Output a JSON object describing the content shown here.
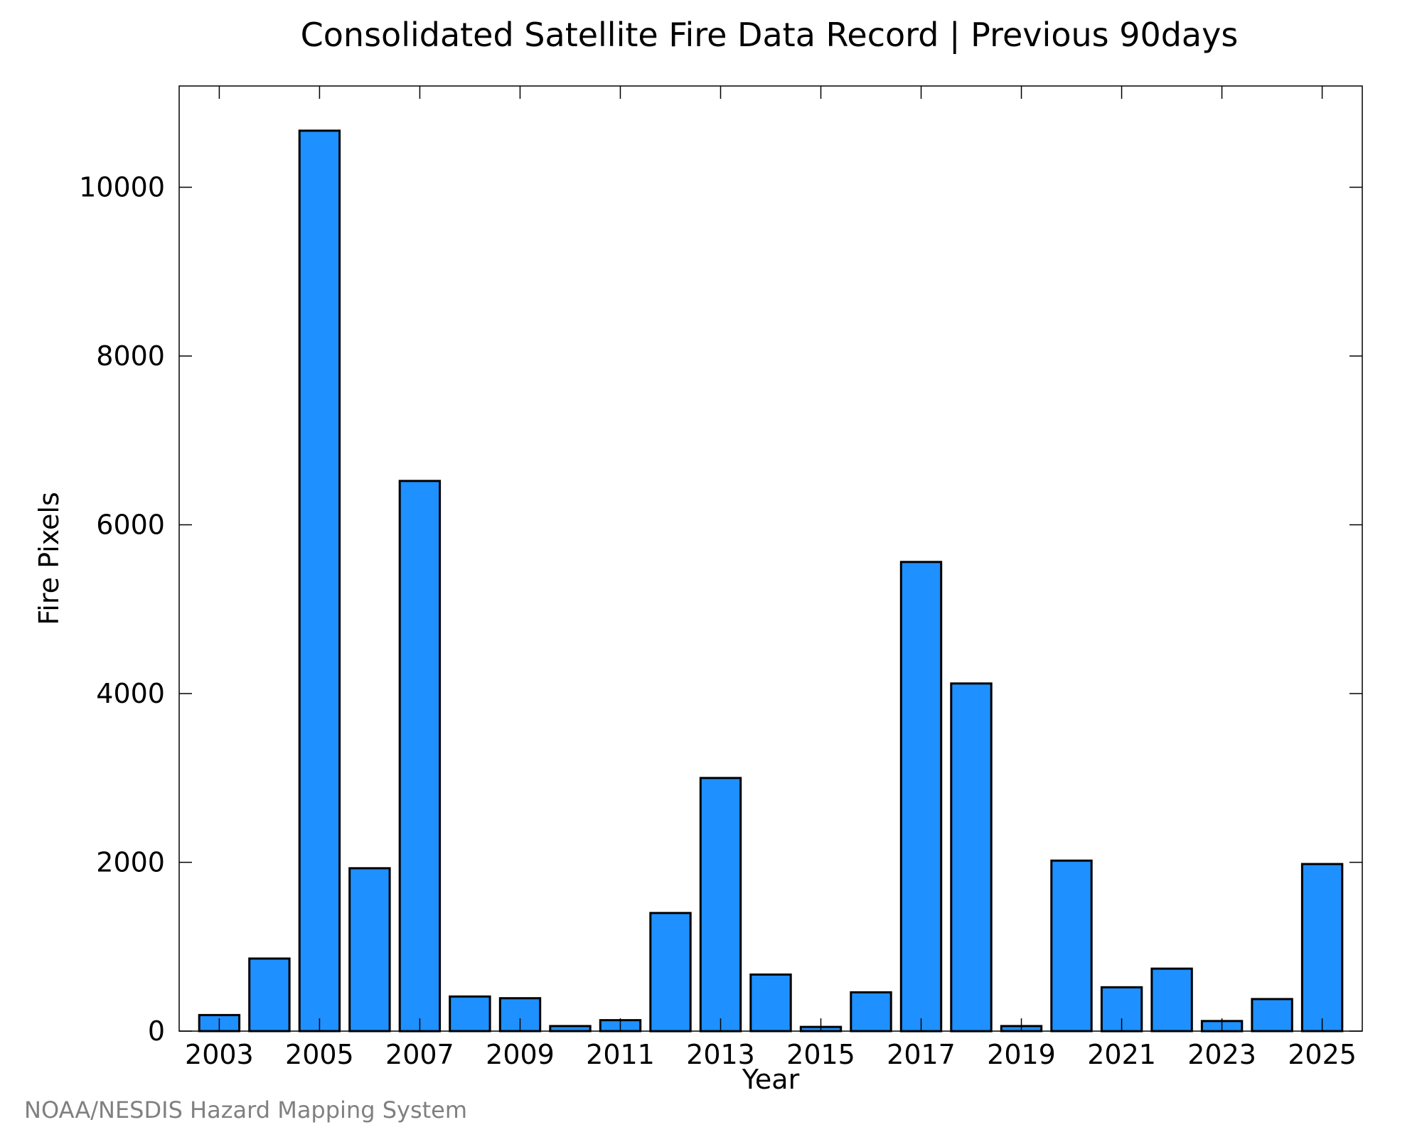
{
  "chart_data": {
    "type": "bar",
    "title": "Consolidated Satellite Fire Data Record | Previous 90days",
    "xlabel": "Year",
    "ylabel": "Fire Pixels",
    "categories": [
      "2003",
      "2004",
      "2005",
      "2006",
      "2007",
      "2008",
      "2009",
      "2010",
      "2011",
      "2012",
      "2013",
      "2014",
      "2015",
      "2016",
      "2017",
      "2018",
      "2019",
      "2020",
      "2021",
      "2022",
      "2023",
      "2024",
      "2025"
    ],
    "values": [
      190,
      860,
      10670,
      1930,
      6520,
      410,
      390,
      60,
      130,
      1400,
      3000,
      670,
      50,
      460,
      5560,
      4120,
      60,
      2020,
      520,
      740,
      120,
      380,
      1980
    ],
    "x_tick_labels": [
      "2003",
      "2005",
      "2007",
      "2009",
      "2011",
      "2013",
      "2015",
      "2017",
      "2019",
      "2021",
      "2023",
      "2025"
    ],
    "y_tick_labels": [
      "0",
      "2000",
      "4000",
      "6000",
      "8000",
      "10000"
    ],
    "y_ticks": [
      0,
      2000,
      4000,
      6000,
      8000,
      10000
    ],
    "ylim": [
      0,
      11200
    ],
    "xlim": [
      2002.2,
      2025.8
    ],
    "grid": false,
    "legend": "none",
    "bar_color": "#1e90ff",
    "bar_edge_color": "#000000"
  },
  "source_note": "NOAA/NESDIS Hazard Mapping System"
}
